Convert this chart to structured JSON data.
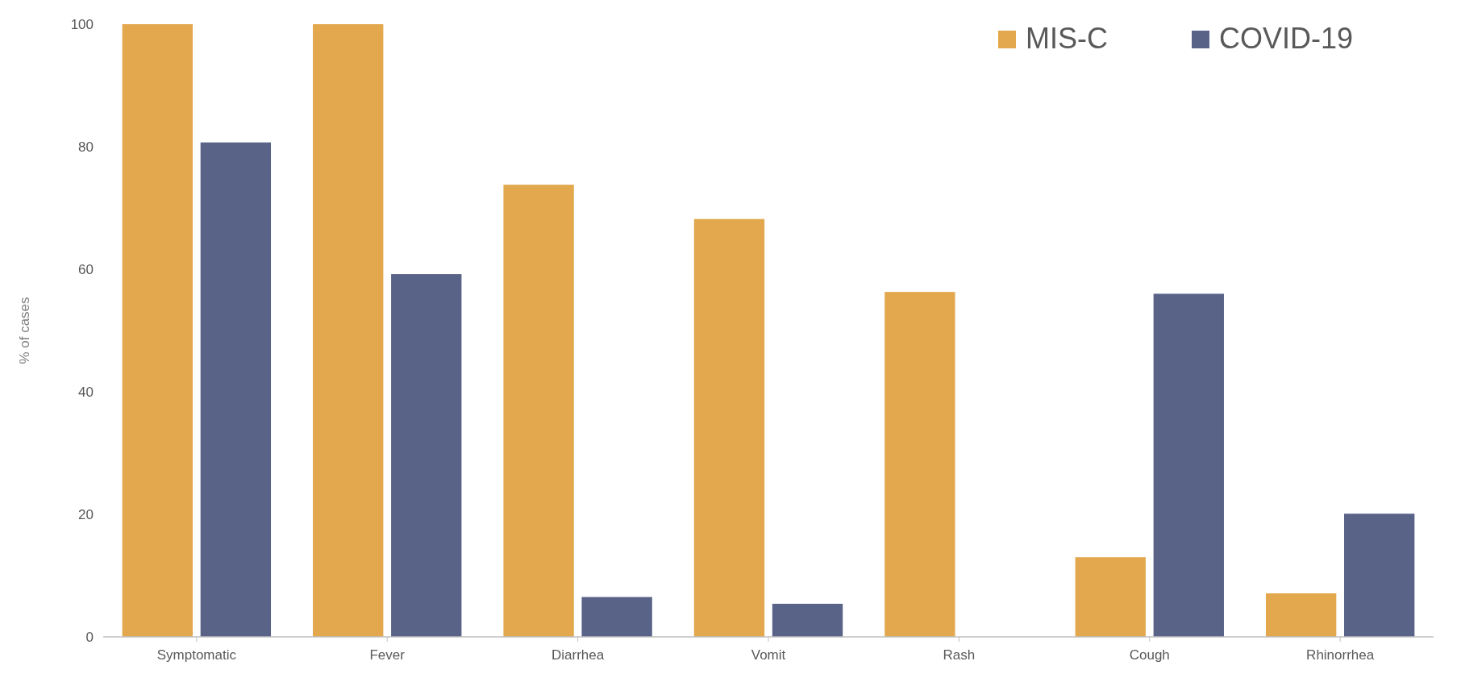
{
  "chart_data": {
    "type": "bar",
    "ylabel": "% of cases",
    "categories": [
      "Symptomatic",
      "Fever",
      "Diarrhea",
      "Vomit",
      "Rash",
      "Cough",
      "Rhinorrhea"
    ],
    "series": [
      {
        "name": "MIS-C",
        "color": "#e3a84d",
        "values": [
          100,
          100,
          73.8,
          68.2,
          56.3,
          13,
          7.1
        ]
      },
      {
        "name": "COVID-19",
        "color": "#586387",
        "values": [
          80.7,
          59.2,
          6.5,
          5.4,
          0,
          56,
          20.1
        ]
      }
    ],
    "ylim": [
      0,
      100
    ],
    "yticks": [
      0,
      20,
      40,
      60,
      80,
      100
    ],
    "grid": false,
    "legend": "top right"
  }
}
